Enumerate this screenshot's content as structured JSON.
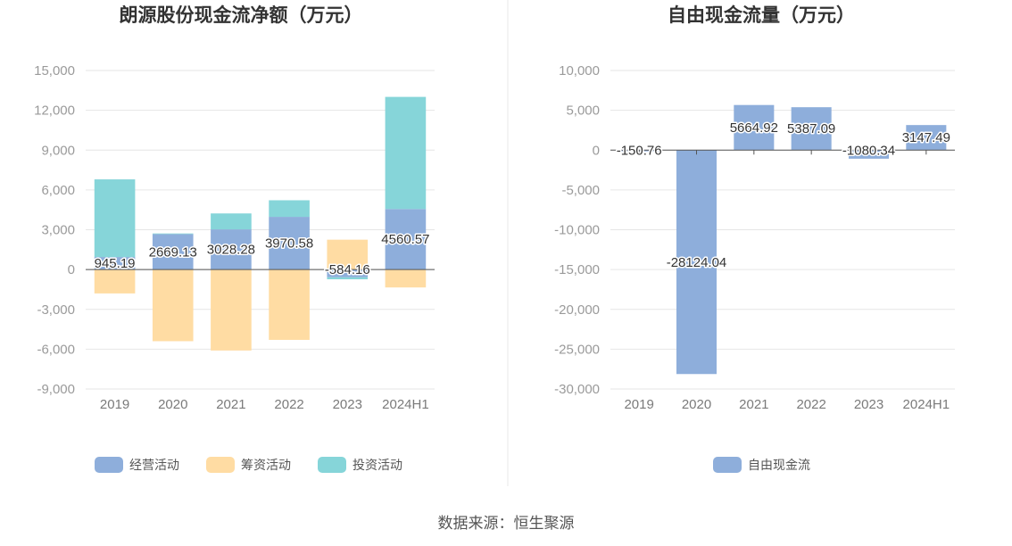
{
  "chart_data": [
    {
      "type": "bar",
      "title": "朗源股份现金流净额（万元）",
      "categories": [
        "2019",
        "2020",
        "2021",
        "2022",
        "2023",
        "2024H1"
      ],
      "ylim": [
        -9000,
        15000
      ],
      "yticks": [
        15000,
        12000,
        9000,
        6000,
        3000,
        0,
        -3000,
        -6000,
        -9000
      ],
      "ytick_labels": [
        "15,000",
        "12,000",
        "9,000",
        "6,000",
        "3,000",
        "0",
        "-3,000",
        "-6,000",
        "-9,000"
      ],
      "stacked": true,
      "grid": true,
      "legend_position": "bottom",
      "series": [
        {
          "name": "经营活动",
          "color": "#8eaedb",
          "values": [
            945.19,
            2669.13,
            3028.28,
            3970.58,
            -584.16,
            4560.57
          ]
        },
        {
          "name": "筹资活动",
          "color": "#ffdca3",
          "values": [
            -1800,
            -5400,
            -6100,
            -5300,
            2250,
            -1350
          ]
        },
        {
          "name": "投资活动",
          "color": "#86d5d9",
          "values": [
            5850,
            50,
            1200,
            1250,
            -150,
            8450
          ]
        }
      ],
      "data_labels": [
        "945.19",
        "2669.13",
        "3028.28",
        "3970.58",
        "-584.16",
        "4560.57"
      ]
    },
    {
      "type": "bar",
      "title": "自由现金流量（万元）",
      "categories": [
        "2019",
        "2020",
        "2021",
        "2022",
        "2023",
        "2024H1"
      ],
      "ylim": [
        -30000,
        10000
      ],
      "yticks": [
        10000,
        5000,
        0,
        -5000,
        -10000,
        -15000,
        -20000,
        -25000,
        -30000
      ],
      "ytick_labels": [
        "10,000",
        "5,000",
        "0",
        "-5,000",
        "-10,000",
        "-15,000",
        "-20,000",
        "-25,000",
        "-30,000"
      ],
      "grid": true,
      "legend_position": "bottom",
      "series": [
        {
          "name": "自由现金流",
          "color": "#8eaedb",
          "values": [
            -150.76,
            -28124.04,
            5664.92,
            5387.09,
            -1080.34,
            3147.49
          ]
        }
      ],
      "data_labels": [
        "-150.76",
        "-28124.04",
        "5664.92",
        "5387.09",
        "-1080.34",
        "3147.49"
      ]
    }
  ],
  "source": "数据来源：恒生聚源"
}
